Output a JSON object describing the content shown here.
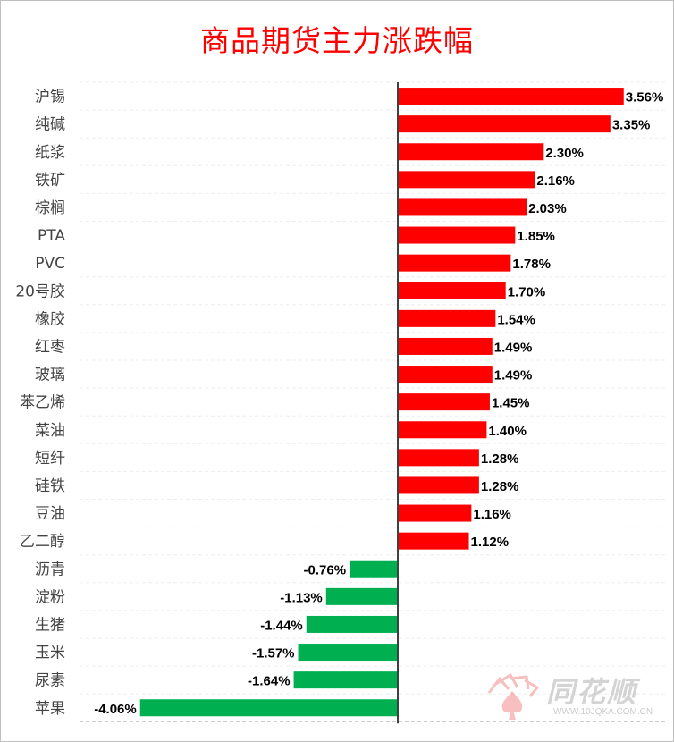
{
  "chart_data": {
    "type": "bar",
    "orientation": "horizontal",
    "title": "商品期货主力涨跌幅",
    "categories": [
      "沪锡",
      "纯碱",
      "纸浆",
      "铁矿",
      "棕榈",
      "PTA",
      "PVC",
      "20号胶",
      "橡胶",
      "红枣",
      "玻璃",
      "苯乙烯",
      "菜油",
      "短纤",
      "硅铁",
      "豆油",
      "乙二醇",
      "沥青",
      "淀粉",
      "生猪",
      "玉米",
      "尿素",
      "苹果"
    ],
    "values": [
      3.56,
      3.35,
      2.3,
      2.16,
      2.03,
      1.85,
      1.78,
      1.7,
      1.54,
      1.49,
      1.49,
      1.45,
      1.4,
      1.28,
      1.28,
      1.16,
      1.12,
      -0.76,
      -1.13,
      -1.44,
      -1.57,
      -1.64,
      -4.06
    ],
    "labels": [
      "3.56%",
      "3.35%",
      "2.30%",
      "2.16%",
      "2.03%",
      "1.85%",
      "1.78%",
      "1.70%",
      "1.54%",
      "1.49%",
      "1.49%",
      "1.45%",
      "1.40%",
      "1.28%",
      "1.28%",
      "1.16%",
      "1.12%",
      "-0.76%",
      "-1.13%",
      "-1.44%",
      "-1.57%",
      "-1.64%",
      "-4.06%"
    ],
    "xlim": [
      -5,
      4.4
    ],
    "grid": true,
    "colors": {
      "positive": "#ff0000",
      "negative": "#00b050",
      "title": "#ff0000"
    }
  },
  "watermark": {
    "name": "同花顺",
    "url": "WWW.10JQKA.COM.CN"
  }
}
